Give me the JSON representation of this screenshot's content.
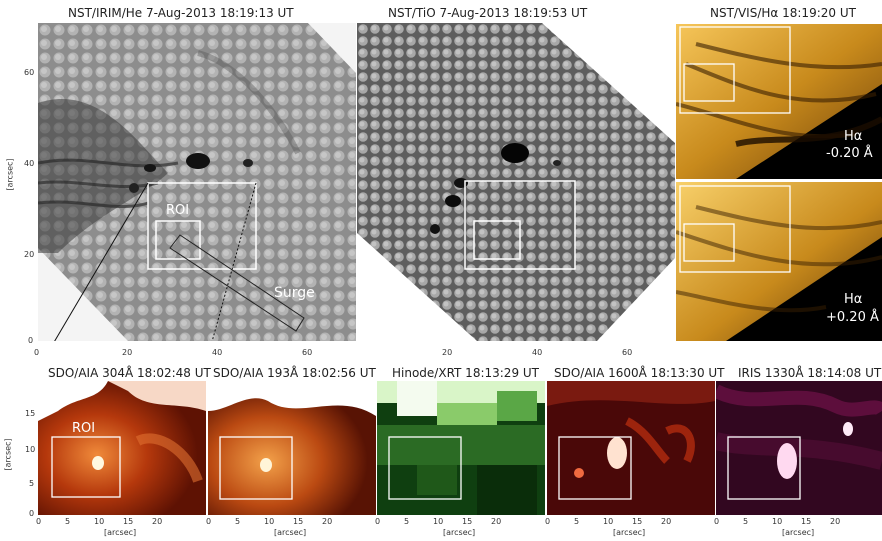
{
  "top_panels": {
    "irim": {
      "title": "NST/IRIM/He  7-Aug-2013   18:19:13 UT",
      "roi_label": "ROI",
      "surge_label": "Surge"
    },
    "tio": {
      "title": "NST/TiO   7-Aug-2013    18:19:53 UT"
    },
    "vis": {
      "title": "NST/VIS/Hα  18:19:20 UT",
      "upper": {
        "line": "Hα",
        "offset": "-0.20 Å"
      },
      "lower": {
        "line": "Hα",
        "offset": "+0.20 Å"
      }
    }
  },
  "top_axes": {
    "ylabel": "[arcsec]",
    "yticks": [
      "60",
      "40",
      "20",
      "0"
    ],
    "xticks": [
      "0",
      "20",
      "40",
      "60",
      "20",
      "40",
      "60"
    ]
  },
  "bottom_panels": [
    {
      "title": "SDO/AIA  304Å  18:02:48 UT",
      "roi_label": "ROI",
      "colormap": "red-heat"
    },
    {
      "title": "SDO/AIA  193Å  18:02:56 UT",
      "colormap": "orange-heat"
    },
    {
      "title": "Hinode/XRT  18:13:29 UT",
      "colormap": "green"
    },
    {
      "title": "SDO/AIA  1600Å  18:13:30 UT",
      "colormap": "red-dark"
    },
    {
      "title": "IRIS 1330Å  18:14:08 UT",
      "colormap": "magenta"
    }
  ],
  "bottom_axes": {
    "ylabel": "[arcsec]",
    "yticks": [
      "15",
      "10",
      "5",
      "0"
    ],
    "xticks": [
      "0",
      "5",
      "10",
      "15",
      "20"
    ],
    "xlabel": "[arcsec]"
  },
  "colors": {
    "box": "#ffffff",
    "halpha": "#d89a2a",
    "xrt": "#2f8f2f",
    "iris": "#d0116e",
    "aia304": "#a8330f"
  }
}
